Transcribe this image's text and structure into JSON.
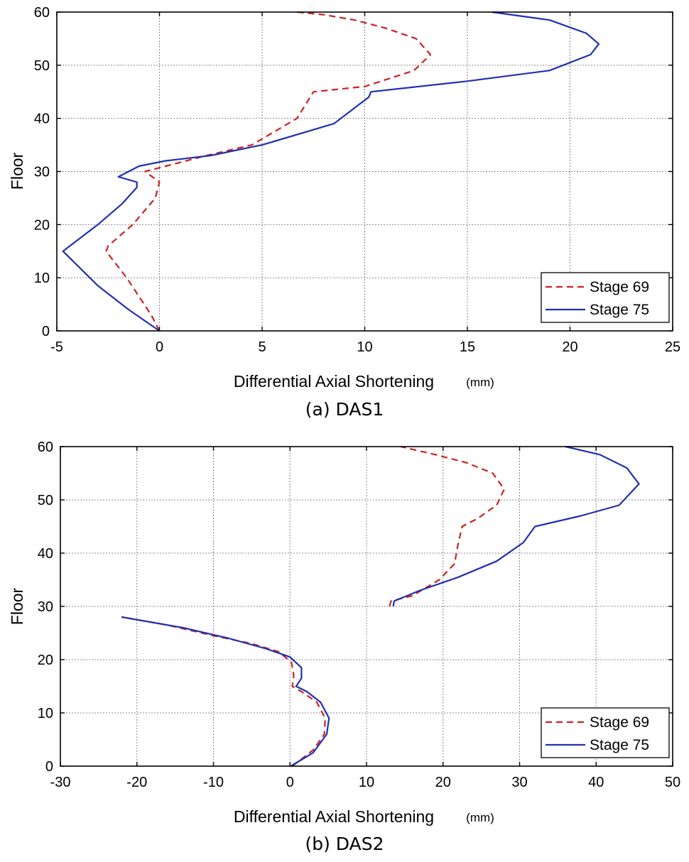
{
  "chart_data": [
    {
      "type": "line",
      "caption": "(a) DAS1",
      "xlabel": "Differential Axial Shortening",
      "xunit": "(mm)",
      "ylabel": "Floor",
      "xlim": [
        -5,
        25
      ],
      "ylim": [
        0,
        60
      ],
      "xticks": [
        -5,
        0,
        5,
        10,
        15,
        20,
        25
      ],
      "yticks": [
        0,
        10,
        20,
        30,
        40,
        50,
        60
      ],
      "grid": true,
      "legend_position": "bottom-right",
      "series": [
        {
          "name": "Stage 69",
          "color": "#cc2222",
          "dash": "dashed",
          "points": [
            [
              0,
              0
            ],
            [
              -0.4,
              3
            ],
            [
              -1.6,
              10
            ],
            [
              -2.6,
              15
            ],
            [
              -2.5,
              16
            ],
            [
              -1.3,
              20
            ],
            [
              -0.2,
              25
            ],
            [
              0,
              28
            ],
            [
              -0.7,
              30
            ],
            [
              0.3,
              31
            ],
            [
              2.3,
              33
            ],
            [
              4.5,
              35
            ],
            [
              6.7,
              40
            ],
            [
              7.5,
              45
            ],
            [
              10,
              46
            ],
            [
              12.4,
              49
            ],
            [
              13.2,
              52
            ],
            [
              12.5,
              55
            ],
            [
              11,
              57
            ],
            [
              9.5,
              58.5
            ],
            [
              8,
              59.5
            ],
            [
              6.7,
              60
            ]
          ]
        },
        {
          "name": "Stage 75",
          "color": "#2030b0",
          "dash": "solid",
          "points": [
            [
              0,
              0
            ],
            [
              -1.5,
              4
            ],
            [
              -3,
              8.5
            ],
            [
              -4.7,
              15
            ],
            [
              -3,
              20
            ],
            [
              -1.8,
              24
            ],
            [
              -1.1,
              27
            ],
            [
              -1.1,
              28
            ],
            [
              -2,
              29
            ],
            [
              -1,
              31
            ],
            [
              0.3,
              32
            ],
            [
              2.5,
              33
            ],
            [
              5,
              35
            ],
            [
              8.5,
              39
            ],
            [
              10.2,
              44
            ],
            [
              10.3,
              45
            ],
            [
              15,
              47
            ],
            [
              19,
              49
            ],
            [
              21,
              52
            ],
            [
              21.4,
              54
            ],
            [
              20.8,
              56
            ],
            [
              19,
              58.5
            ],
            [
              16.2,
              60
            ]
          ]
        }
      ]
    },
    {
      "type": "line",
      "caption": "(b) DAS2",
      "xlabel": "Differential Axial Shortening",
      "xunit": "(mm)",
      "ylabel": "Floor",
      "xlim": [
        -30,
        50
      ],
      "ylim": [
        0,
        60
      ],
      "xticks": [
        -30,
        -20,
        -10,
        0,
        10,
        20,
        30,
        40,
        50
      ],
      "yticks": [
        0,
        10,
        20,
        30,
        40,
        50,
        60
      ],
      "grid": true,
      "legend_position": "bottom-right",
      "series": [
        {
          "name": "Stage 69",
          "color": "#cc2222",
          "dash": "dashed",
          "segments": [
            [
              [
                0.3,
                0
              ],
              [
                3,
                3
              ],
              [
                4.5,
                6
              ],
              [
                4.6,
                9
              ],
              [
                3.5,
                12
              ],
              [
                1.5,
                14
              ],
              [
                0.3,
                15
              ],
              [
                0.5,
                17
              ],
              [
                0.2,
                19.5
              ],
              [
                -1.5,
                21.5
              ],
              [
                -5,
                23
              ],
              [
                -10,
                24.5
              ],
              [
                -16,
                26.5
              ],
              [
                -22,
                28
              ]
            ],
            [
              [
                13,
                30
              ],
              [
                13.2,
                31
              ],
              [
                16,
                32
              ],
              [
                19.5,
                35
              ],
              [
                21.5,
                38
              ],
              [
                22,
                42
              ],
              [
                22.5,
                45
              ],
              [
                24.5,
                46.5
              ],
              [
                27,
                49
              ],
              [
                28,
                52
              ],
              [
                26.5,
                55
              ],
              [
                23,
                57
              ],
              [
                19,
                58.5
              ],
              [
                14.5,
                60
              ]
            ]
          ]
        },
        {
          "name": "Stage 75",
          "color": "#2030b0",
          "dash": "solid",
          "segments": [
            [
              [
                0.1,
                0
              ],
              [
                3,
                2.5
              ],
              [
                4.8,
                6
              ],
              [
                5.1,
                9
              ],
              [
                4,
                12
              ],
              [
                2.2,
                14
              ],
              [
                0.8,
                15
              ],
              [
                1.5,
                16.5
              ],
              [
                1.5,
                18.5
              ],
              [
                0,
                20.5
              ],
              [
                -3,
                22
              ],
              [
                -8,
                24
              ],
              [
                -14,
                26
              ],
              [
                -22,
                28
              ]
            ],
            [
              [
                13.5,
                30
              ],
              [
                13.6,
                31
              ],
              [
                17,
                33
              ],
              [
                22,
                35.5
              ],
              [
                27,
                38.5
              ],
              [
                30.5,
                42
              ],
              [
                31.5,
                44
              ],
              [
                32,
                45
              ],
              [
                38,
                47
              ],
              [
                43,
                49
              ],
              [
                45.6,
                53
              ],
              [
                44,
                56
              ],
              [
                40.5,
                58.5
              ],
              [
                36,
                60
              ]
            ]
          ]
        }
      ]
    }
  ]
}
